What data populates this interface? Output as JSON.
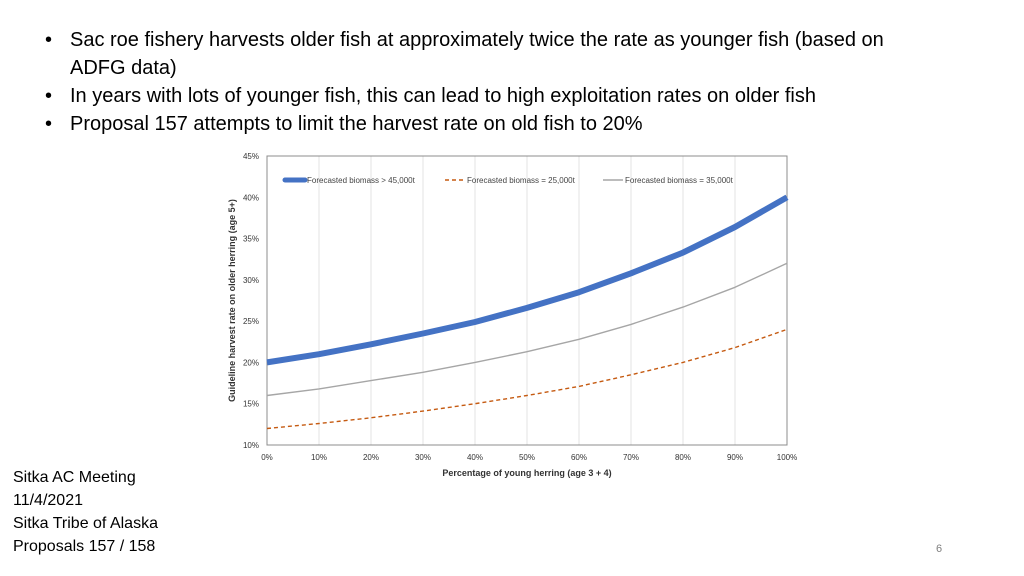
{
  "bullets": [
    "Sac roe fishery harvests older fish at approximately twice the rate as younger fish (based on ADFG data)",
    "In years with lots of younger fish, this can lead to high exploitation rates on older fish",
    "Proposal 157 attempts to limit the harvest rate on old fish to 20%"
  ],
  "footer": {
    "line1": "Sitka AC Meeting",
    "line2": "11/4/2021",
    "line3": "Sitka Tribe of Alaska",
    "line4": "Proposals 157 / 158"
  },
  "page_number": "6",
  "chart_data": {
    "type": "line",
    "title": "",
    "xlabel": "Percentage of young herring (age 3 + 4)",
    "ylabel": "Guideline harvest rate on older herring (age 5+)",
    "xlim": [
      0,
      100
    ],
    "ylim": [
      10,
      45
    ],
    "x_ticks": [
      0,
      10,
      20,
      30,
      40,
      50,
      60,
      70,
      80,
      90,
      100
    ],
    "x_tick_labels": [
      "0%",
      "10%",
      "20%",
      "30%",
      "40%",
      "50%",
      "60%",
      "70%",
      "80%",
      "90%",
      "100%"
    ],
    "y_ticks": [
      10,
      15,
      20,
      25,
      30,
      35,
      40,
      45
    ],
    "y_tick_labels": [
      "10%",
      "15%",
      "20%",
      "25%",
      "30%",
      "35%",
      "40%",
      "45%"
    ],
    "grid": "vertical",
    "legend_position": "top",
    "x": [
      0,
      10,
      20,
      30,
      40,
      50,
      60,
      70,
      80,
      90,
      100
    ],
    "series": [
      {
        "name": "Forecasted biomass > 45,000t",
        "color": "#4472c4",
        "style": "thick-solid",
        "values": [
          20.0,
          21.0,
          22.2,
          23.5,
          24.9,
          26.6,
          28.5,
          30.8,
          33.3,
          36.4,
          40.0
        ]
      },
      {
        "name": "Forecasted biomass = 25,000t",
        "color": "#c55a11",
        "style": "dashed",
        "values": [
          12.0,
          12.6,
          13.3,
          14.1,
          15.0,
          16.0,
          17.1,
          18.5,
          20.0,
          21.8,
          24.0
        ]
      },
      {
        "name": "Forecasted biomass = 35,000t",
        "color": "#a6a6a6",
        "style": "thin-solid",
        "values": [
          16.0,
          16.8,
          17.8,
          18.8,
          20.0,
          21.3,
          22.8,
          24.6,
          26.7,
          29.1,
          32.0
        ]
      }
    ]
  }
}
